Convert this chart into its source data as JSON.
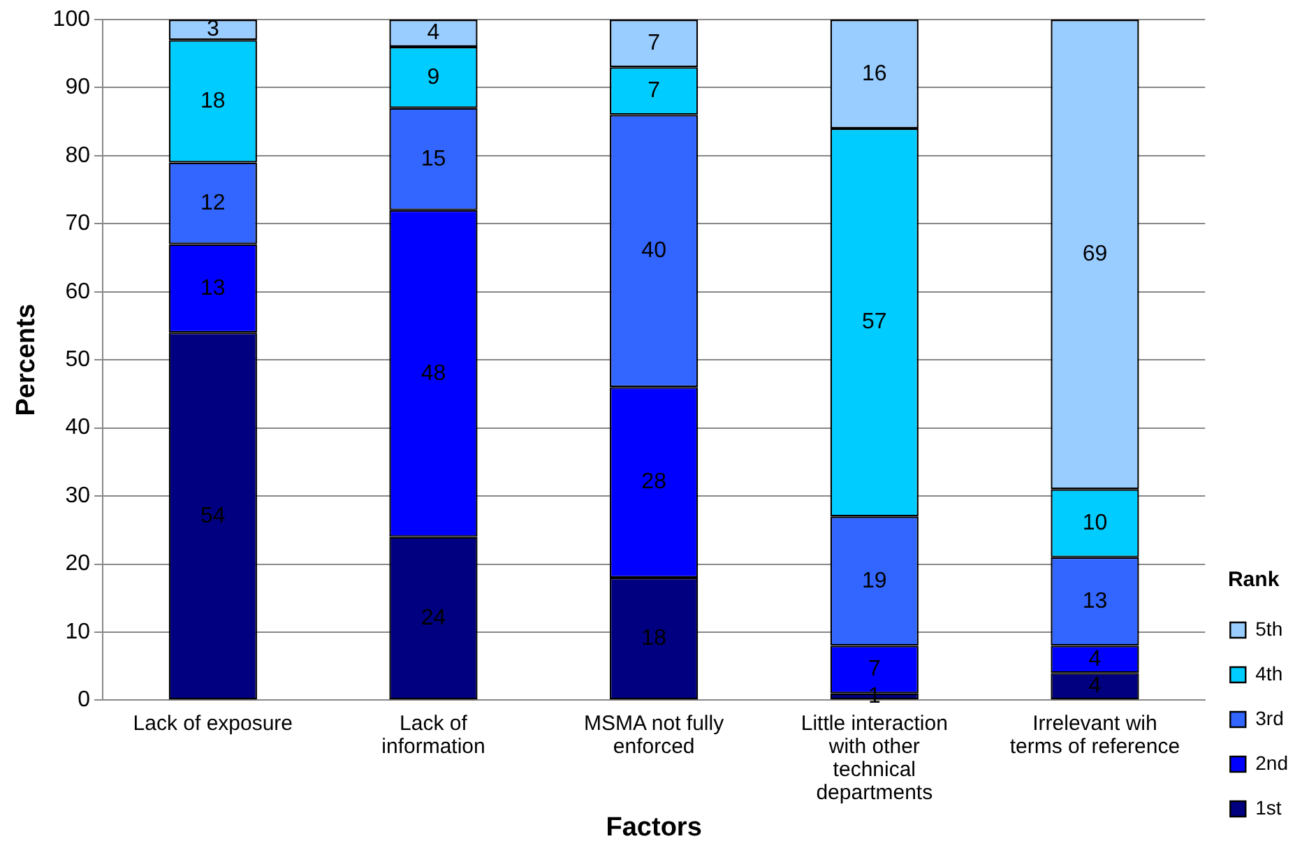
{
  "chart_data": {
    "type": "bar",
    "stacked": true,
    "xlabel": "Factors",
    "ylabel": "Percents",
    "legend_title": "Rank",
    "legend": "right",
    "categories": [
      "Lack of exposure",
      "Lack of information",
      "MSMA not fully enforced",
      "Little interaction with other technical departments",
      "Irrelevant wih terms of reference"
    ],
    "series": [
      {
        "name": "1st",
        "color": "#000080",
        "values": [
          54,
          24,
          18,
          1,
          4
        ]
      },
      {
        "name": "2nd",
        "color": "#0000ff",
        "values": [
          13,
          48,
          28,
          7,
          4
        ]
      },
      {
        "name": "3rd",
        "color": "#3366ff",
        "values": [
          12,
          15,
          40,
          19,
          13
        ]
      },
      {
        "name": "4th",
        "color": "#00ccff",
        "values": [
          18,
          9,
          7,
          57,
          10
        ]
      },
      {
        "name": "5th",
        "color": "#99ccff",
        "values": [
          3,
          4,
          7,
          16,
          69
        ]
      }
    ],
    "ylim": [
      0,
      100
    ],
    "yticks": [
      0,
      10,
      20,
      30,
      40,
      50,
      60,
      70,
      80,
      90,
      100
    ],
    "grid": "y",
    "data_labels": true
  }
}
